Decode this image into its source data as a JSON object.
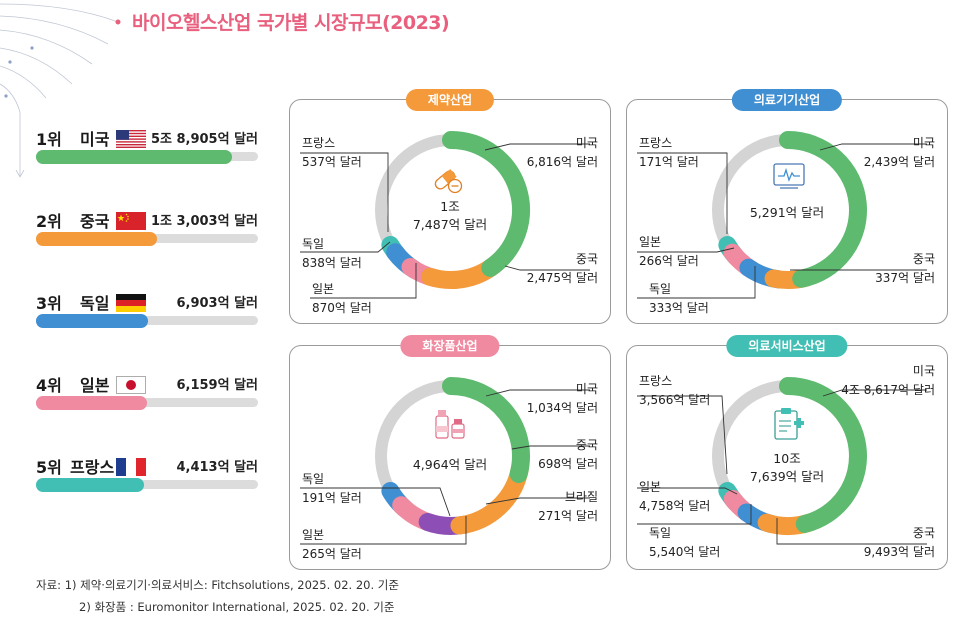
{
  "title": "바이오헬스산업 국가별 시장규모(2023)",
  "colors": {
    "title": "#e8607e",
    "us": "#5dba6e",
    "china": "#f49a3a",
    "germany": "#3f8fd2",
    "japan": "#ef8aa0",
    "france": "#42bfb4",
    "brazil": "#8d4fb5",
    "track": "#d4d4d4",
    "pharma": "#f49a3a",
    "device": "#3f8fd2",
    "cosmetics": "#ef8aa0",
    "service": "#42bfb4"
  },
  "ranking": [
    {
      "rank": "1위",
      "country": "미국",
      "flag": "us-flag-icon",
      "value": "5조 8,905억 달러",
      "amount": 58905,
      "color": "#5dba6e"
    },
    {
      "rank": "2위",
      "country": "중국",
      "flag": "china-flag-icon",
      "value": "1조 3,003억 달러",
      "amount": 13003,
      "color": "#f49a3a"
    },
    {
      "rank": "3위",
      "country": "독일",
      "flag": "germany-flag-icon",
      "value": "6,903억 달러",
      "amount": 6903,
      "color": "#3f8fd2"
    },
    {
      "rank": "4위",
      "country": "일본",
      "flag": "japan-flag-icon",
      "value": "6,159억 달러",
      "amount": 6159,
      "color": "#ef8aa0"
    },
    {
      "rank": "5위",
      "country": "프랑스",
      "flag": "france-flag-icon",
      "value": "4,413억 달러",
      "amount": 4413,
      "color": "#42bfb4"
    }
  ],
  "panels": {
    "pharma": {
      "title": "제약산업",
      "total_line1": "1조",
      "total_line2": "7,487억 달러",
      "icon": "pill-icon",
      "labels": {
        "us": {
          "name": "미국",
          "value": "6,816억 달러"
        },
        "china": {
          "name": "중국",
          "value": "2,475억 달러"
        },
        "japan": {
          "name": "일본",
          "value": "870억 달러"
        },
        "germany": {
          "name": "독일",
          "value": "838억 달러"
        },
        "france": {
          "name": "프랑스",
          "value": "537억 달러"
        }
      }
    },
    "device": {
      "title": "의료기기산업",
      "total_line1": "5,291억 달러",
      "icon": "monitor-icon",
      "labels": {
        "us": {
          "name": "미국",
          "value": "2,439억 달러"
        },
        "china": {
          "name": "중국",
          "value": "337억 달러"
        },
        "germany": {
          "name": "독일",
          "value": "333억 달러"
        },
        "japan": {
          "name": "일본",
          "value": "266억 달러"
        },
        "france": {
          "name": "프랑스",
          "value": "171억 달러"
        }
      }
    },
    "cosmetics": {
      "title": "화장품산업",
      "total_line1": "4,964억 달러",
      "icon": "cosmetics-icon",
      "labels": {
        "us": {
          "name": "미국",
          "value": "1,034억 달러"
        },
        "china": {
          "name": "중국",
          "value": "698억 달러"
        },
        "brazil": {
          "name": "브라질",
          "value": "271억 달러"
        },
        "japan": {
          "name": "일본",
          "value": "265억 달러"
        },
        "germany": {
          "name": "독일",
          "value": "191억 달러"
        }
      }
    },
    "service": {
      "title": "의료서비스산업",
      "total_line1": "10조",
      "total_line2": "7,639억 달러",
      "icon": "clipboard-icon",
      "labels": {
        "us": {
          "name": "미국",
          "value": "4조 8,617억 달러"
        },
        "china": {
          "name": "중국",
          "value": "9,493억 달러"
        },
        "germany": {
          "name": "독일",
          "value": "5,540억 달러"
        },
        "japan": {
          "name": "일본",
          "value": "4,758억 달러"
        },
        "france": {
          "name": "프랑스",
          "value": "3,566억 달러"
        }
      }
    }
  },
  "chart_data": [
    {
      "type": "pie",
      "title": "제약산업",
      "categories": [
        "미국",
        "중국",
        "일본",
        "독일",
        "프랑스"
      ],
      "values": [
        6816,
        2475,
        870,
        838,
        537
      ],
      "unit": "억 달러",
      "total": 17487
    },
    {
      "type": "pie",
      "title": "의료기기산업",
      "categories": [
        "미국",
        "중국",
        "독일",
        "일본",
        "프랑스"
      ],
      "values": [
        2439,
        337,
        333,
        266,
        171
      ],
      "unit": "억 달러",
      "total": 5291
    },
    {
      "type": "pie",
      "title": "화장품산업",
      "categories": [
        "미국",
        "중국",
        "브라질",
        "일본",
        "독일"
      ],
      "values": [
        1034,
        698,
        271,
        265,
        191
      ],
      "unit": "억 달러",
      "total": 4964
    },
    {
      "type": "pie",
      "title": "의료서비스산업",
      "categories": [
        "미국",
        "중국",
        "독일",
        "일본",
        "프랑스"
      ],
      "values": [
        48617,
        9493,
        5540,
        4758,
        3566
      ],
      "unit": "억 달러",
      "total": 107639
    },
    {
      "type": "bar",
      "title": "",
      "categories": [
        "미국",
        "중국",
        "독일",
        "일본",
        "프랑스"
      ],
      "values": [
        58905,
        13003,
        6903,
        6159,
        4413
      ],
      "unit": "억 달러"
    }
  ],
  "source": {
    "line1": "자료: 1) 제약·의료기기·의료서비스: Fitchsolutions, 2025. 02. 20. 기준",
    "line2": "2) 화장품 : Euromonitor International, 2025. 02. 20. 기준"
  }
}
